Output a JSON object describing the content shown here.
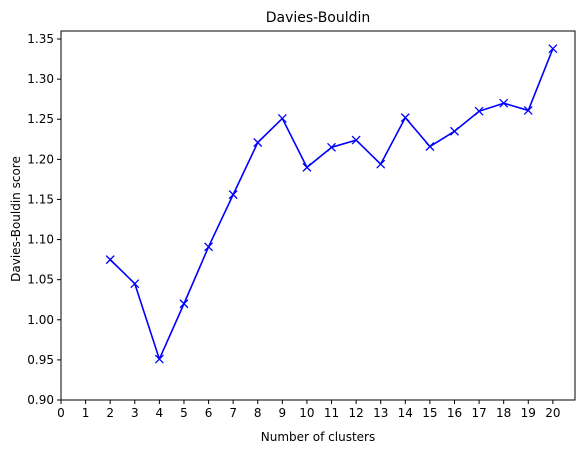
{
  "chart_data": {
    "type": "line",
    "title": "Davies-Bouldin",
    "xlabel": "Number of clusters",
    "ylabel": "Davies-Bouldin score",
    "xlim": [
      0,
      20.9
    ],
    "ylim": [
      0.9,
      1.36
    ],
    "x_ticks": [
      "0",
      "1",
      "2",
      "3",
      "4",
      "5",
      "6",
      "7",
      "8",
      "9",
      "10",
      "11",
      "12",
      "13",
      "14",
      "15",
      "16",
      "17",
      "18",
      "19",
      "20"
    ],
    "y_ticks": [
      "0.90",
      "0.95",
      "1.00",
      "1.05",
      "1.10",
      "1.15",
      "1.20",
      "1.25",
      "1.30",
      "1.35"
    ],
    "grid": false,
    "marker": "x",
    "color": "#0000ff",
    "series": [
      {
        "x": [
          2,
          3,
          4,
          5,
          6,
          7,
          8,
          9,
          10,
          11,
          12,
          13,
          14,
          15,
          16,
          17,
          18,
          19,
          20
        ],
        "values": [
          1.075,
          1.045,
          0.951,
          1.02,
          1.091,
          1.156,
          1.221,
          1.251,
          1.19,
          1.215,
          1.224,
          1.194,
          1.252,
          1.216,
          1.235,
          1.26,
          1.27,
          1.261,
          1.338
        ]
      }
    ]
  }
}
